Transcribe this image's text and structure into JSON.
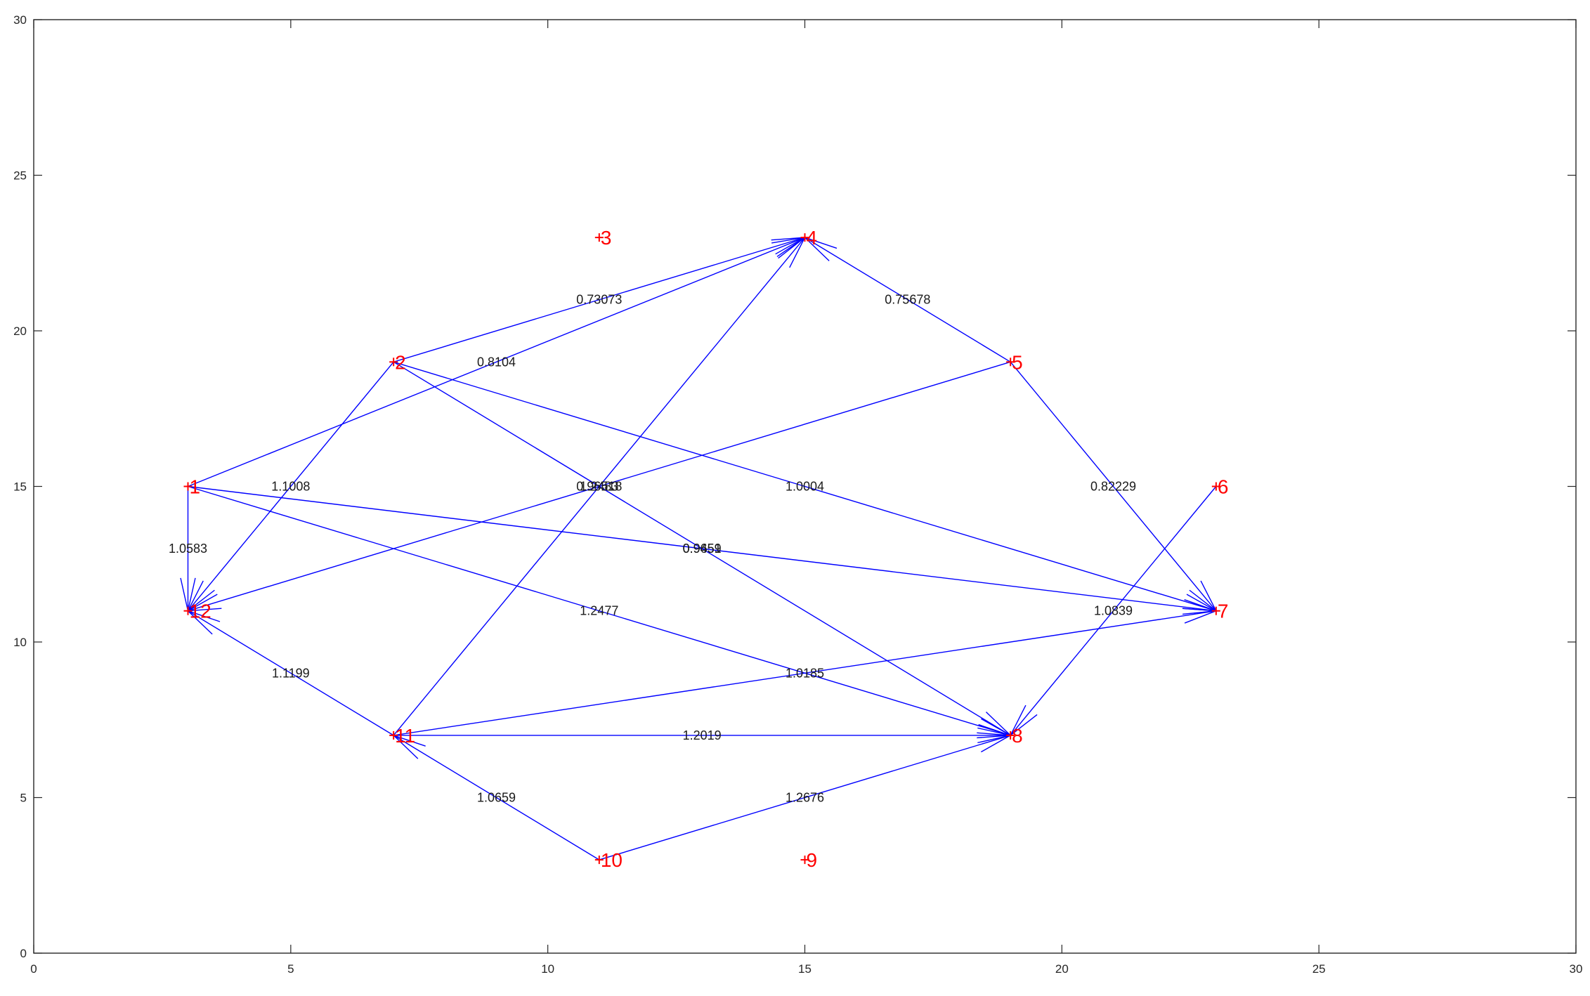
{
  "chart_data": {
    "type": "scatter",
    "subtype": "directed-graph",
    "title": "",
    "xlabel": "",
    "ylabel": "",
    "xlim": [
      0,
      30
    ],
    "ylim": [
      0,
      30
    ],
    "xticks": [
      "0",
      "5",
      "10",
      "15",
      "20",
      "25",
      "30"
    ],
    "yticks": [
      "0",
      "5",
      "10",
      "15",
      "20",
      "25",
      "30"
    ],
    "grid": false,
    "colors": {
      "node": "#ff0000",
      "edge": "#0000ff",
      "axis": "#262626"
    },
    "nodes": [
      {
        "label": "1",
        "x": 3,
        "y": 15
      },
      {
        "label": "2",
        "x": 7,
        "y": 19
      },
      {
        "label": "3",
        "x": 11,
        "y": 23
      },
      {
        "label": "4",
        "x": 15,
        "y": 23
      },
      {
        "label": "5",
        "x": 19,
        "y": 19
      },
      {
        "label": "6",
        "x": 23,
        "y": 15
      },
      {
        "label": "7",
        "x": 23,
        "y": 11
      },
      {
        "label": "8",
        "x": 19,
        "y": 7
      },
      {
        "label": "9",
        "x": 15,
        "y": 3
      },
      {
        "label": "10",
        "x": 11,
        "y": 3
      },
      {
        "label": "11",
        "x": 7,
        "y": 7
      },
      {
        "label": "12",
        "x": 3,
        "y": 11
      }
    ],
    "edges": [
      {
        "from": "2",
        "to": "4",
        "weight": "0.73073"
      },
      {
        "from": "1",
        "to": "4",
        "weight": "0.8104"
      },
      {
        "from": "5",
        "to": "4",
        "weight": "0.75678"
      },
      {
        "from": "2",
        "to": "12",
        "weight": "1.1008"
      },
      {
        "from": "1",
        "to": "12",
        "weight": "1.0583"
      },
      {
        "from": "5",
        "to": "12",
        "weight": "0.96518"
      },
      {
        "from": "2",
        "to": "8",
        "weight": "0.9651"
      },
      {
        "from": "2",
        "to": "7",
        "weight": "1.0004"
      },
      {
        "from": "5",
        "to": "7",
        "weight": "0.82229"
      },
      {
        "from": "1",
        "to": "7",
        "weight": "0.9459"
      },
      {
        "from": "1",
        "to": "8",
        "weight": "1.2477"
      },
      {
        "from": "11",
        "to": "7",
        "weight": "1.0185"
      },
      {
        "from": "11",
        "to": "4",
        "weight": "1.2483"
      },
      {
        "from": "11",
        "to": "12",
        "weight": "1.1199"
      },
      {
        "from": "11",
        "to": "8",
        "weight": "1.2019"
      },
      {
        "from": "10",
        "to": "8",
        "weight": "1.2676"
      },
      {
        "from": "6",
        "to": "8",
        "weight": "1.0839"
      },
      {
        "from": "10",
        "to": "11",
        "weight": "1.0659"
      }
    ]
  }
}
